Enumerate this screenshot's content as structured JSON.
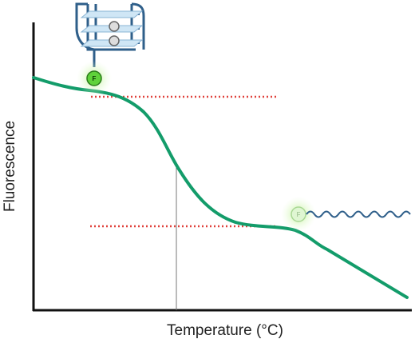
{
  "y_axis": {
    "label": "Fluorescence"
  },
  "x_axis": {
    "label": "Temperature (°C)"
  },
  "folded_fluorophore": {
    "label": "F"
  },
  "unfolded_fluorophore": {
    "label": "F"
  }
}
